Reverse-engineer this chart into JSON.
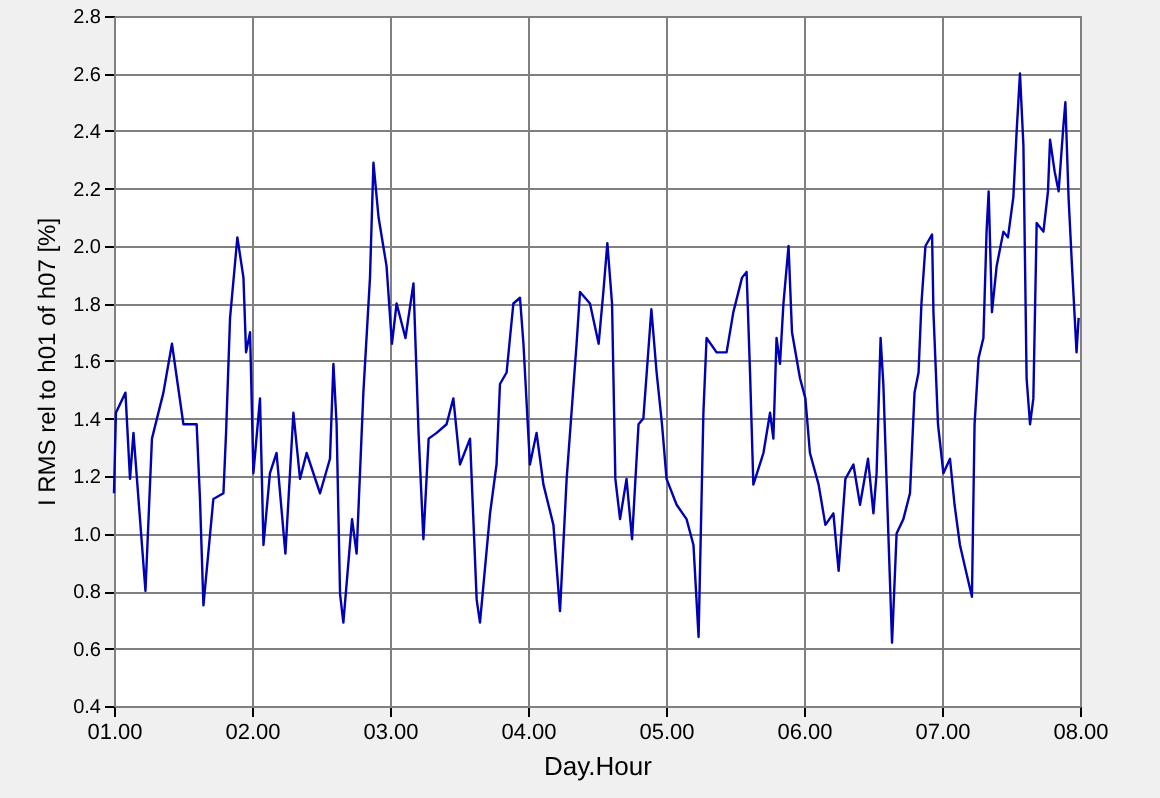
{
  "chart_data": {
    "type": "line",
    "xlabel": "Day.Hour",
    "ylabel": "I RMS rel to h01 of h07 [%]",
    "xlim": [
      1,
      8
    ],
    "xticks": [
      {
        "value": 1,
        "label": "01.00"
      },
      {
        "value": 2,
        "label": "02.00"
      },
      {
        "value": 3,
        "label": "03.00"
      },
      {
        "value": 4,
        "label": "04.00"
      },
      {
        "value": 5,
        "label": "05.00"
      },
      {
        "value": 6,
        "label": "06.00"
      },
      {
        "value": 7,
        "label": "07.00"
      },
      {
        "value": 8,
        "label": "08.00"
      }
    ],
    "ylim": [
      0.4,
      2.8
    ],
    "yticks": [
      0.4,
      0.6,
      0.8,
      {
        "value": 1.0,
        "label": "1.0"
      },
      1.2,
      1.4,
      1.6,
      1.8,
      {
        "value": 2.0,
        "label": "2.0"
      },
      2.2,
      2.4,
      2.6,
      2.8
    ],
    "grid": true,
    "marker": "none",
    "line_style": "solid",
    "series": [
      {
        "color": "#0000b4",
        "x": [
          1.0,
          1.014,
          1.083,
          1.116,
          1.141,
          1.228,
          1.275,
          1.358,
          1.42,
          1.503,
          1.599,
          1.623,
          1.648,
          1.72,
          1.793,
          1.812,
          1.841,
          1.894,
          1.938,
          1.957,
          1.986,
          2.01,
          2.058,
          2.083,
          2.13,
          2.178,
          2.242,
          2.3,
          2.348,
          2.396,
          2.493,
          2.565,
          2.59,
          2.613,
          2.638,
          2.662,
          2.725,
          2.758,
          2.807,
          2.855,
          2.88,
          2.917,
          2.975,
          3.014,
          3.048,
          3.112,
          3.17,
          3.207,
          3.242,
          3.28,
          3.338,
          3.41,
          3.459,
          3.507,
          3.58,
          3.628,
          3.652,
          3.725,
          3.772,
          3.797,
          3.845,
          3.894,
          3.942,
          3.967,
          4.014,
          4.062,
          4.112,
          4.184,
          4.232,
          4.28,
          4.352,
          4.377,
          4.449,
          4.512,
          4.546,
          4.575,
          4.609,
          4.633,
          4.667,
          4.714,
          4.754,
          4.801,
          4.836,
          4.894,
          4.932,
          4.971,
          5.004,
          5.077,
          5.149,
          5.199,
          5.236,
          5.271,
          5.294,
          5.367,
          5.439,
          5.488,
          5.551,
          5.584,
          5.609,
          5.633,
          5.706,
          5.754,
          5.778,
          5.801,
          5.826,
          5.851,
          5.888,
          5.913,
          5.971,
          6.01,
          6.043,
          6.106,
          6.155,
          6.213,
          6.251,
          6.3,
          6.358,
          6.406,
          6.464,
          6.503,
          6.526,
          6.555,
          6.575,
          6.609,
          6.638,
          6.671,
          6.72,
          6.768,
          6.801,
          6.83,
          6.851,
          6.88,
          6.928,
          6.938,
          6.971,
          7.01,
          7.058,
          7.091,
          7.13,
          7.178,
          7.217,
          7.236,
          7.265,
          7.3,
          7.323,
          7.338,
          7.362,
          7.396,
          7.445,
          7.478,
          7.517,
          7.541,
          7.565,
          7.59,
          7.613,
          7.638,
          7.662,
          7.686,
          7.735,
          7.768,
          7.783,
          7.816,
          7.845,
          7.88,
          7.894,
          7.917,
          7.942,
          7.975,
          7.99
        ],
        "values": [
          1.14,
          1.42,
          1.49,
          1.19,
          1.35,
          0.8,
          1.33,
          1.49,
          1.66,
          1.38,
          1.38,
          1.12,
          0.75,
          1.12,
          1.14,
          1.35,
          1.75,
          2.03,
          1.89,
          1.63,
          1.7,
          1.21,
          1.47,
          0.96,
          1.21,
          1.28,
          0.93,
          1.42,
          1.19,
          1.28,
          1.14,
          1.26,
          1.59,
          1.38,
          0.79,
          0.69,
          1.05,
          0.93,
          1.49,
          1.89,
          2.29,
          2.1,
          1.93,
          1.66,
          1.8,
          1.68,
          1.87,
          1.35,
          0.98,
          1.33,
          1.35,
          1.38,
          1.47,
          1.24,
          1.33,
          0.77,
          0.69,
          1.07,
          1.24,
          1.52,
          1.56,
          1.8,
          1.82,
          1.66,
          1.24,
          1.35,
          1.17,
          1.03,
          0.73,
          1.19,
          1.66,
          1.84,
          1.8,
          1.66,
          1.84,
          2.01,
          1.8,
          1.19,
          1.05,
          1.19,
          0.98,
          1.38,
          1.4,
          1.78,
          1.56,
          1.38,
          1.19,
          1.1,
          1.05,
          0.96,
          0.64,
          1.42,
          1.68,
          1.63,
          1.63,
          1.77,
          1.89,
          1.91,
          1.56,
          1.17,
          1.28,
          1.42,
          1.33,
          1.68,
          1.59,
          1.8,
          2.0,
          1.7,
          1.54,
          1.47,
          1.28,
          1.17,
          1.03,
          1.07,
          0.87,
          1.19,
          1.24,
          1.1,
          1.26,
          1.07,
          1.21,
          1.68,
          1.52,
          1.03,
          0.62,
          1.0,
          1.05,
          1.14,
          1.49,
          1.56,
          1.8,
          2.0,
          2.04,
          1.77,
          1.38,
          1.21,
          1.26,
          1.1,
          0.96,
          0.86,
          0.78,
          1.38,
          1.61,
          1.68,
          2.05,
          2.19,
          1.77,
          1.93,
          2.05,
          2.03,
          2.17,
          2.4,
          2.6,
          2.35,
          1.54,
          1.38,
          1.47,
          2.08,
          2.05,
          2.19,
          2.37,
          2.26,
          2.19,
          2.42,
          2.5,
          2.17,
          1.93,
          1.63,
          1.75
        ]
      }
    ]
  }
}
